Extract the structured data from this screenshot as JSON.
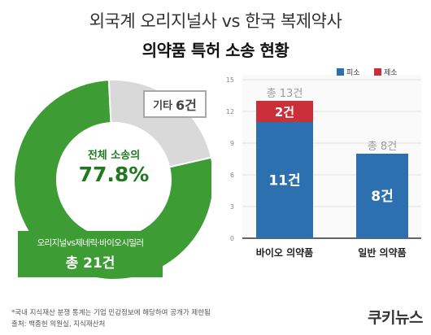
{
  "title_line1": "외국계 오리지널사 vs 한국 복제약사",
  "title_line2": "의약품 특허 소송 현황",
  "donut": {
    "center_label": "전체 소송의",
    "center_value": "77.8%",
    "other_label": "기타",
    "other_value": "6건",
    "main_label": "오리지널vs제네릭·바이오시밀러",
    "main_value": "총 21건"
  },
  "footnote_line1": "*국내 지식재산 분쟁 통계는 기업 민감정보에 해당하여 공개가 제한됨",
  "footnote_line2": "출처: 백종헌 의원실, 지식재산처",
  "logo": "쿠키뉴스",
  "colors": {
    "main_green": "#3e9c35",
    "other_gray": "#d9d9d9",
    "blue": "#2c70b0",
    "red": "#c9303a",
    "total_gray": "#9a9a9a"
  },
  "chart_data": [
    {
      "type": "pie",
      "labels": [
        "오리지널vs제네릭·바이오시밀러",
        "기타"
      ],
      "values": [
        21,
        6
      ],
      "value_labels": [
        "총 21건",
        "6건"
      ]
    },
    {
      "type": "bar",
      "stacked": true,
      "categories": [
        "바이오 의약품",
        "일반 의약품"
      ],
      "series": [
        {
          "name": "피소",
          "values": [
            11,
            8
          ],
          "labels": [
            "11건",
            "8건"
          ]
        },
        {
          "name": "제소",
          "values": [
            2,
            0
          ],
          "labels": [
            "2건",
            ""
          ]
        }
      ],
      "totals": [
        "총 13건",
        "총 8건"
      ],
      "ylim": [
        0,
        15
      ],
      "yticks": [
        0,
        3,
        6,
        9,
        12,
        15
      ],
      "grid": true,
      "legend": "top-right"
    }
  ]
}
